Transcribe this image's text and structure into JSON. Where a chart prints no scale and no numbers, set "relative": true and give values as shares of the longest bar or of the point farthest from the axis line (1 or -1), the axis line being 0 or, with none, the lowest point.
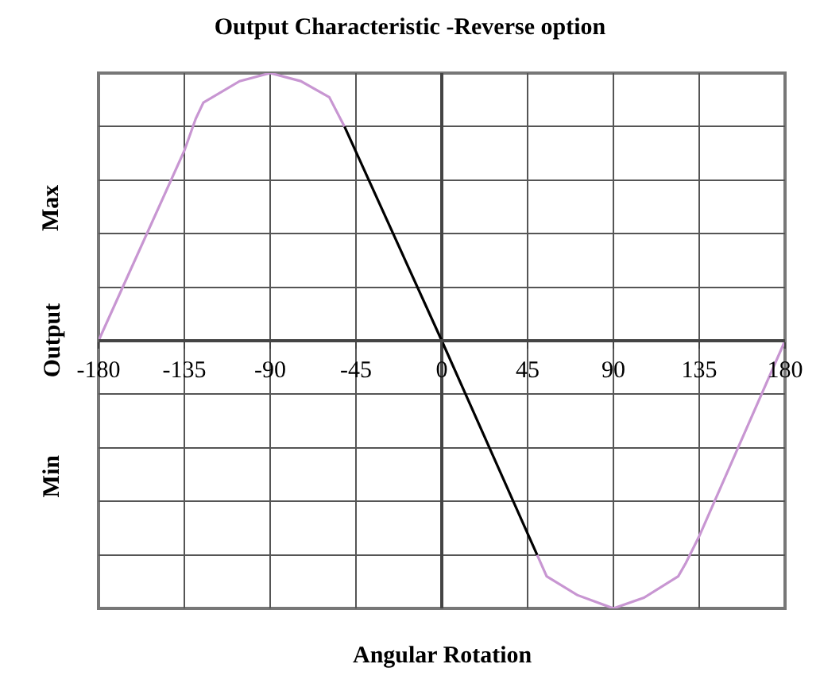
{
  "chart_data": {
    "type": "line",
    "title": "Output Characteristic -Reverse option",
    "xlabel": "Angular Rotation",
    "ylabel": "Min Output Max",
    "relative": true,
    "series": [
      {
        "color": "#c896d2",
        "x": [
          -180,
          -135,
          -129,
          -125,
          -106,
          -90,
          -74,
          -59,
          -51,
          0,
          50,
          55,
          71,
          90,
          106,
          124,
          128,
          135,
          180
        ],
        "values": [
          0,
          0.71,
          0.83,
          0.89,
          0.97,
          1,
          0.97,
          0.91,
          0.8,
          null,
          -0.8,
          -0.88,
          -0.95,
          -1,
          -0.96,
          -0.88,
          -0.83,
          -0.73,
          0
        ]
      },
      {
        "color": "#000000",
        "x": [
          -51,
          0,
          50
        ],
        "values": [
          0.8,
          0,
          -0.8
        ]
      }
    ],
    "xlim": [
      -180,
      180
    ],
    "xticks": [
      -180,
      -135,
      -90,
      -45,
      0,
      45,
      90,
      135,
      180
    ],
    "grid": true,
    "marker": "none",
    "line_style": "solid"
  }
}
